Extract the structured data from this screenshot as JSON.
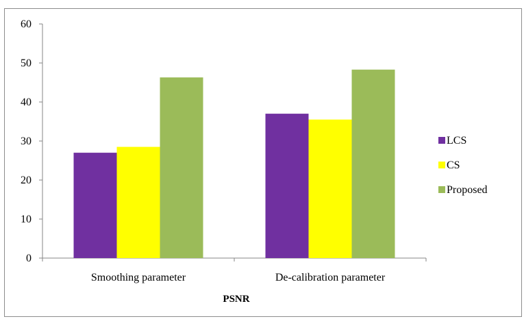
{
  "chart_data": {
    "type": "bar",
    "title": "",
    "xlabel": "PSNR",
    "ylabel": "",
    "categories": [
      "Smoothing parameter",
      "De-calibration parameter"
    ],
    "series": [
      {
        "name": "LCS",
        "values": [
          27,
          37
        ],
        "color": "#7030a0"
      },
      {
        "name": "CS",
        "values": [
          28.5,
          35.5
        ],
        "color": "#ffff00"
      },
      {
        "name": "Proposed",
        "values": [
          46.3,
          48.3
        ],
        "color": "#9bbb59"
      }
    ],
    "ylim": [
      0,
      60
    ],
    "yticks": [
      0,
      10,
      20,
      30,
      40,
      50,
      60
    ],
    "grid": false,
    "legend": "right"
  }
}
